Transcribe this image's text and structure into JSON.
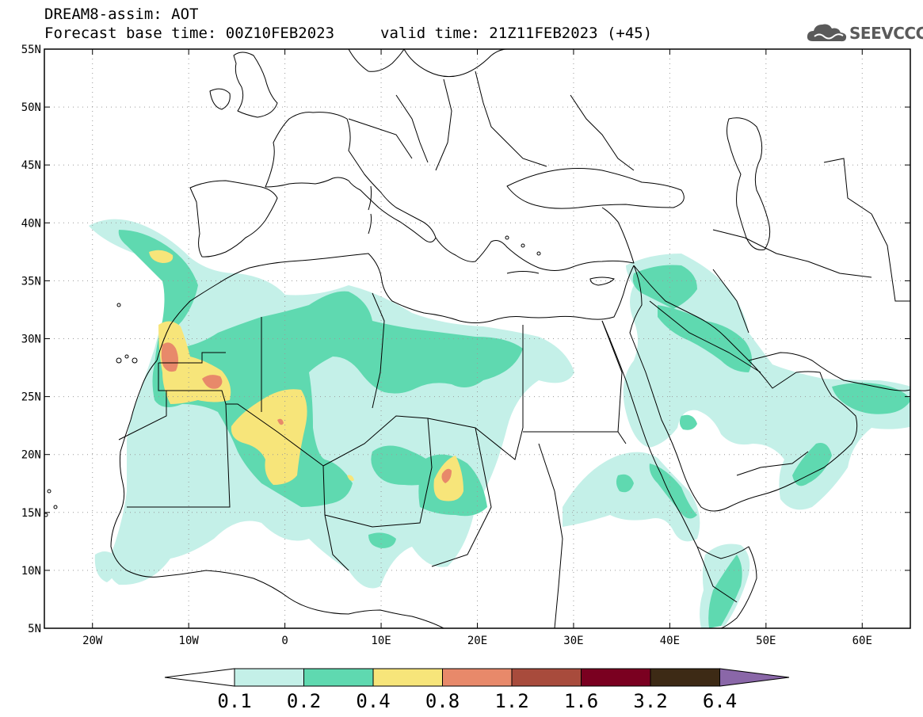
{
  "header": {
    "line1": "DREAM8-assim: AOT",
    "base_time": "Forecast base time: 00Z10FEB2023",
    "valid_time": "valid time: 21Z11FEB2023 (+45)"
  },
  "logo": {
    "text": "SEEVCCC",
    "icon": "cloud-icon",
    "color": "#5a5a5a"
  },
  "map": {
    "lon_range": [
      -25,
      65
    ],
    "lat_range": [
      5,
      55
    ],
    "lon_ticks": [
      {
        "value": -20,
        "label": "20W"
      },
      {
        "value": -10,
        "label": "10W"
      },
      {
        "value": 0,
        "label": "0"
      },
      {
        "value": 10,
        "label": "10E"
      },
      {
        "value": 20,
        "label": "20E"
      },
      {
        "value": 30,
        "label": "30E"
      },
      {
        "value": 40,
        "label": "40E"
      },
      {
        "value": 50,
        "label": "50E"
      },
      {
        "value": 60,
        "label": "60E"
      }
    ],
    "lat_ticks": [
      {
        "value": 5,
        "label": "5N"
      },
      {
        "value": 10,
        "label": "10N"
      },
      {
        "value": 15,
        "label": "15N"
      },
      {
        "value": 20,
        "label": "20N"
      },
      {
        "value": 25,
        "label": "25N"
      },
      {
        "value": 30,
        "label": "30N"
      },
      {
        "value": 35,
        "label": "35N"
      },
      {
        "value": 40,
        "label": "40N"
      },
      {
        "value": 45,
        "label": "45N"
      },
      {
        "value": 50,
        "label": "50N"
      },
      {
        "value": 55,
        "label": "55N"
      }
    ],
    "grid": "dotted"
  },
  "colorbar": {
    "labels": [
      "0.1",
      "0.2",
      "0.4",
      "0.8",
      "1.2",
      "1.6",
      "3.2",
      "6.4"
    ],
    "colors": [
      "#ffffff",
      "#c4f0e8",
      "#5fd9b0",
      "#f7e57a",
      "#e8896a",
      "#a84b3c",
      "#7a0020",
      "#3d2a15",
      "#8a67a8"
    ]
  }
}
